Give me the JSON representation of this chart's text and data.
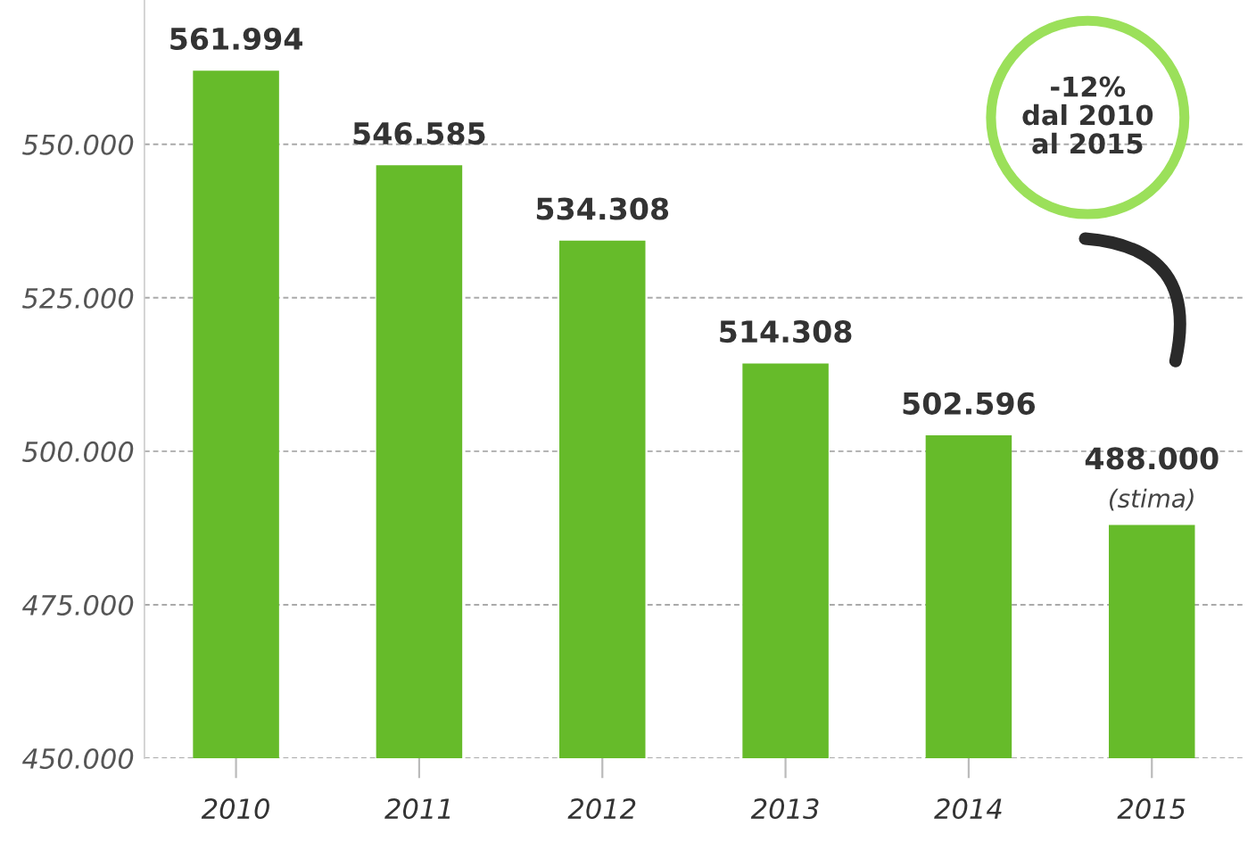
{
  "chart_data": {
    "type": "bar",
    "categories": [
      "2010",
      "2011",
      "2012",
      "2013",
      "2014",
      "2015"
    ],
    "values": [
      561994,
      546585,
      534308,
      514308,
      502596,
      488000
    ],
    "value_labels": [
      "561.994",
      "546.585",
      "534.308",
      "514.308",
      "502.596",
      "488.000"
    ],
    "color": "#66bb2a",
    "ylim": [
      450000,
      573500
    ],
    "yticks": [
      {
        "value": 450000,
        "label": "450.000"
      },
      {
        "value": 475000,
        "label": "475.000"
      },
      {
        "value": 500000,
        "label": "500.000"
      },
      {
        "value": 525000,
        "label": "525.000"
      },
      {
        "value": 550000,
        "label": "550.000"
      }
    ],
    "grid": "y",
    "annotations": [
      {
        "text": "(stima)",
        "x": "2015",
        "y": 488000
      },
      "-12%\ndal 2010\nal 2015"
    ]
  }
}
